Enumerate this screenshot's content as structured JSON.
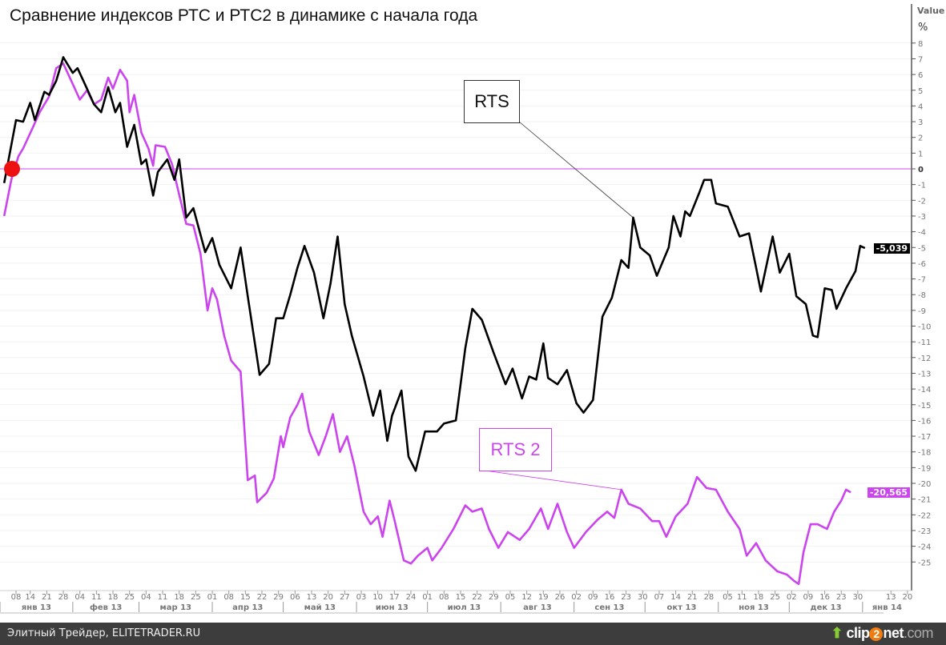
{
  "chart_data": {
    "type": "line",
    "title": "Сравнение индексов РТС и РТС2 в динамике с начала года",
    "ylabel": "Value",
    "yunit": "%",
    "ylim": [
      -26.5,
      9
    ],
    "yticks": [
      8,
      7,
      6,
      5,
      4,
      3,
      2,
      1,
      0,
      -1,
      -2,
      -3,
      -4,
      -5,
      -6,
      -7,
      -8,
      -9,
      -10,
      -11,
      -12,
      -13,
      -14,
      -15,
      -16,
      -17,
      -18,
      -19,
      -20,
      -21,
      -22,
      -23,
      -24,
      -25
    ],
    "x_unit": "day of year 2013",
    "xticks": [
      {
        "date": "2013-01-08",
        "label": "08"
      },
      {
        "date": "2013-01-14",
        "label": "14"
      },
      {
        "date": "2013-01-21",
        "label": "21"
      },
      {
        "date": "2013-01-28",
        "label": "28"
      },
      {
        "date": "2013-02-04",
        "label": "04"
      },
      {
        "date": "2013-02-11",
        "label": "11"
      },
      {
        "date": "2013-02-18",
        "label": "18"
      },
      {
        "date": "2013-02-25",
        "label": "25"
      },
      {
        "date": "2013-03-04",
        "label": "04"
      },
      {
        "date": "2013-03-11",
        "label": "11"
      },
      {
        "date": "2013-03-18",
        "label": "18"
      },
      {
        "date": "2013-03-25",
        "label": "25"
      },
      {
        "date": "2013-04-01",
        "label": "01"
      },
      {
        "date": "2013-04-08",
        "label": "08"
      },
      {
        "date": "2013-04-15",
        "label": "15"
      },
      {
        "date": "2013-04-22",
        "label": "22"
      },
      {
        "date": "2013-04-29",
        "label": "29"
      },
      {
        "date": "2013-05-06",
        "label": "06"
      },
      {
        "date": "2013-05-13",
        "label": "13"
      },
      {
        "date": "2013-05-20",
        "label": "20"
      },
      {
        "date": "2013-05-27",
        "label": "27"
      },
      {
        "date": "2013-06-03",
        "label": "03"
      },
      {
        "date": "2013-06-10",
        "label": "10"
      },
      {
        "date": "2013-06-17",
        "label": "17"
      },
      {
        "date": "2013-06-24",
        "label": "24"
      },
      {
        "date": "2013-07-01",
        "label": "01"
      },
      {
        "date": "2013-07-08",
        "label": "08"
      },
      {
        "date": "2013-07-15",
        "label": "15"
      },
      {
        "date": "2013-07-22",
        "label": "22"
      },
      {
        "date": "2013-07-29",
        "label": "29"
      },
      {
        "date": "2013-08-05",
        "label": "05"
      },
      {
        "date": "2013-08-12",
        "label": "12"
      },
      {
        "date": "2013-08-19",
        "label": "19"
      },
      {
        "date": "2013-08-26",
        "label": "26"
      },
      {
        "date": "2013-09-02",
        "label": "02"
      },
      {
        "date": "2013-09-09",
        "label": "09"
      },
      {
        "date": "2013-09-16",
        "label": "16"
      },
      {
        "date": "2013-09-23",
        "label": "23"
      },
      {
        "date": "2013-09-30",
        "label": "30"
      },
      {
        "date": "2013-10-07",
        "label": "07"
      },
      {
        "date": "2013-10-14",
        "label": "14"
      },
      {
        "date": "2013-10-21",
        "label": "21"
      },
      {
        "date": "2013-10-28",
        "label": "28"
      },
      {
        "date": "2013-11-05",
        "label": "05"
      },
      {
        "date": "2013-11-11",
        "label": "11"
      },
      {
        "date": "2013-11-18",
        "label": "18"
      },
      {
        "date": "2013-11-25",
        "label": "25"
      },
      {
        "date": "2013-12-02",
        "label": "02"
      },
      {
        "date": "2013-12-09",
        "label": "09"
      },
      {
        "date": "2013-12-16",
        "label": "16"
      },
      {
        "date": "2013-12-23",
        "label": "23"
      },
      {
        "date": "2013-12-30",
        "label": "30"
      },
      {
        "date": "2014-01-13",
        "label": "13"
      },
      {
        "date": "2014-01-20",
        "label": "20"
      }
    ],
    "months": [
      {
        "start": "2013-01-01",
        "end": "2013-02-01",
        "label": "янв 13"
      },
      {
        "start": "2013-02-01",
        "end": "2013-03-01",
        "label": "фев 13"
      },
      {
        "start": "2013-03-01",
        "end": "2013-04-01",
        "label": "мар 13"
      },
      {
        "start": "2013-04-01",
        "end": "2013-05-01",
        "label": "апр 13"
      },
      {
        "start": "2013-05-01",
        "end": "2013-06-01",
        "label": "май 13"
      },
      {
        "start": "2013-06-01",
        "end": "2013-07-01",
        "label": "июн 13"
      },
      {
        "start": "2013-07-01",
        "end": "2013-08-01",
        "label": "июл 13"
      },
      {
        "start": "2013-08-01",
        "end": "2013-09-01",
        "label": "авг 13"
      },
      {
        "start": "2013-09-01",
        "end": "2013-10-01",
        "label": "сен 13"
      },
      {
        "start": "2013-10-01",
        "end": "2013-11-01",
        "label": "окт 13"
      },
      {
        "start": "2013-11-01",
        "end": "2013-12-01",
        "label": "ноя 13"
      },
      {
        "start": "2013-12-01",
        "end": "2014-01-01",
        "label": "дек 13"
      },
      {
        "start": "2014-01-01",
        "end": "2014-01-22",
        "label": "янв 14"
      }
    ],
    "series": [
      {
        "name": "RTS",
        "color": "#000000",
        "last_value": "-5,039",
        "points": [
          [
            3,
            -0.9
          ],
          [
            8,
            3.1
          ],
          [
            11,
            3
          ],
          [
            14,
            4.2
          ],
          [
            16,
            3.1
          ],
          [
            20,
            4.9
          ],
          [
            22,
            4.7
          ],
          [
            25,
            5.6
          ],
          [
            28,
            7.1
          ],
          [
            32,
            6.1
          ],
          [
            34,
            6.4
          ],
          [
            38,
            5.1
          ],
          [
            41,
            4.1
          ],
          [
            44,
            3.6
          ],
          [
            47,
            5.2
          ],
          [
            50,
            3.6
          ],
          [
            52,
            4.2
          ],
          [
            55,
            1.4
          ],
          [
            58,
            2.8
          ],
          [
            61,
            0.3
          ],
          [
            63,
            0.6
          ],
          [
            66,
            -1.7
          ],
          [
            68,
            -0.2
          ],
          [
            72,
            0.6
          ],
          [
            75,
            -0.7
          ],
          [
            77,
            0.6
          ],
          [
            80,
            -3.1
          ],
          [
            83,
            -2.5
          ],
          [
            88,
            -5.3
          ],
          [
            91,
            -4.4
          ],
          [
            94,
            -6.1
          ],
          [
            99,
            -7.6
          ],
          [
            103,
            -5
          ],
          [
            106,
            -8.1
          ],
          [
            109,
            -11.1
          ],
          [
            111,
            -13.1
          ],
          [
            115,
            -12.4
          ],
          [
            118,
            -9.5
          ],
          [
            121,
            -9.5
          ],
          [
            124,
            -8
          ],
          [
            127,
            -6.3
          ],
          [
            130,
            -4.9
          ],
          [
            134,
            -6.6
          ],
          [
            138,
            -9.5
          ],
          [
            141,
            -7.3
          ],
          [
            144,
            -4.3
          ],
          [
            147,
            -8.6
          ],
          [
            150,
            -10.6
          ],
          [
            155,
            -13.2
          ],
          [
            159,
            -15.7
          ],
          [
            162,
            -14.1
          ],
          [
            165,
            -17.3
          ],
          [
            167,
            -15.7
          ],
          [
            171,
            -14.1
          ],
          [
            174,
            -18.3
          ],
          [
            177,
            -19.2
          ],
          [
            181,
            -16.7
          ],
          [
            186,
            -16.7
          ],
          [
            189,
            -16.2
          ],
          [
            194,
            -16
          ],
          [
            198,
            -11.4
          ],
          [
            201,
            -8.9
          ],
          [
            205,
            -9.6
          ],
          [
            210,
            -11.7
          ],
          [
            215,
            -13.7
          ],
          [
            218,
            -12.7
          ],
          [
            222,
            -14.6
          ],
          [
            225,
            -13.2
          ],
          [
            228,
            -13.4
          ],
          [
            231,
            -11.1
          ],
          [
            233,
            -13.3
          ],
          [
            237,
            -13.7
          ],
          [
            241,
            -12.8
          ],
          [
            245,
            -14.9
          ],
          [
            248,
            -15.5
          ],
          [
            252,
            -14.7
          ],
          [
            256,
            -9.4
          ],
          [
            260,
            -8.2
          ],
          [
            264,
            -5.8
          ],
          [
            267,
            -6.3
          ],
          [
            269,
            -3.1
          ],
          [
            272,
            -5
          ],
          [
            276,
            -5.5
          ],
          [
            279,
            -6.8
          ],
          [
            284,
            -5
          ],
          [
            286,
            -3
          ],
          [
            289,
            -4.3
          ],
          [
            291,
            -2.7
          ],
          [
            293,
            -3
          ],
          [
            297,
            -1.5
          ],
          [
            299,
            -0.7
          ],
          [
            302,
            -0.7
          ],
          [
            304,
            -2.2
          ],
          [
            309,
            -2.4
          ],
          [
            314,
            -4.3
          ],
          [
            318,
            -4.1
          ],
          [
            321,
            -6.3
          ],
          [
            323,
            -7.8
          ],
          [
            328,
            -4.3
          ],
          [
            331,
            -6.6
          ],
          [
            335,
            -5.4
          ],
          [
            338,
            -8.1
          ],
          [
            342,
            -8.6
          ],
          [
            345,
            -10.6
          ],
          [
            347,
            -10.7
          ],
          [
            350,
            -7.6
          ],
          [
            353,
            -7.7
          ],
          [
            355,
            -8.9
          ],
          [
            359,
            -7.6
          ],
          [
            363,
            -6.5
          ],
          [
            365,
            -4.9
          ],
          [
            367,
            -5.04
          ]
        ]
      },
      {
        "name": "RTS 2",
        "color": "#cc44ee",
        "last_value": "-20,565",
        "points": [
          [
            3,
            -3
          ],
          [
            6,
            -0.7
          ],
          [
            9,
            0.8
          ],
          [
            11,
            1.3
          ],
          [
            15,
            2.6
          ],
          [
            18,
            3.6
          ],
          [
            22,
            4.6
          ],
          [
            25,
            6.4
          ],
          [
            28,
            6.7
          ],
          [
            32,
            5.4
          ],
          [
            35,
            4.4
          ],
          [
            38,
            5
          ],
          [
            41,
            4.1
          ],
          [
            44,
            4.4
          ],
          [
            47,
            5.8
          ],
          [
            49,
            5.1
          ],
          [
            52,
            6.3
          ],
          [
            55,
            5.6
          ],
          [
            56,
            3.6
          ],
          [
            58,
            4.7
          ],
          [
            61,
            2.3
          ],
          [
            64,
            1.3
          ],
          [
            66,
            0.2
          ],
          [
            67,
            1.5
          ],
          [
            71,
            1.4
          ],
          [
            74,
            0.3
          ],
          [
            76,
            -1
          ],
          [
            80,
            -3.5
          ],
          [
            83,
            -3.6
          ],
          [
            86,
            -5.4
          ],
          [
            89,
            -9
          ],
          [
            91,
            -7.6
          ],
          [
            93,
            -8.3
          ],
          [
            96,
            -10.6
          ],
          [
            99,
            -12.2
          ],
          [
            103,
            -12.9
          ],
          [
            104,
            -15.2
          ],
          [
            106,
            -19.8
          ],
          [
            109,
            -19.5
          ],
          [
            110,
            -21.2
          ],
          [
            114,
            -20.6
          ],
          [
            117,
            -19.7
          ],
          [
            120,
            -17
          ],
          [
            121,
            -17.7
          ],
          [
            124,
            -15.8
          ],
          [
            127,
            -15
          ],
          [
            129,
            -14.3
          ],
          [
            132,
            -16.7
          ],
          [
            136,
            -18.2
          ],
          [
            139,
            -17
          ],
          [
            142,
            -15.6
          ],
          [
            145,
            -18
          ],
          [
            148,
            -17
          ],
          [
            151,
            -18.8
          ],
          [
            155,
            -21.8
          ],
          [
            158,
            -22.6
          ],
          [
            161,
            -22.1
          ],
          [
            163,
            -23.4
          ],
          [
            166,
            -21.1
          ],
          [
            168,
            -22.3
          ],
          [
            172,
            -24.9
          ],
          [
            175,
            -25.1
          ],
          [
            178,
            -24.6
          ],
          [
            182,
            -24.1
          ],
          [
            184,
            -24.9
          ],
          [
            188,
            -24.1
          ],
          [
            193,
            -22.9
          ],
          [
            198,
            -21.4
          ],
          [
            201,
            -21.8
          ],
          [
            205,
            -21.6
          ],
          [
            208,
            -22.9
          ],
          [
            212,
            -24.1
          ],
          [
            216,
            -23.1
          ],
          [
            221,
            -23.6
          ],
          [
            225,
            -22.9
          ],
          [
            230,
            -21.6
          ],
          [
            233,
            -22.9
          ],
          [
            237,
            -21.3
          ],
          [
            241,
            -23.1
          ],
          [
            244,
            -24.1
          ],
          [
            249,
            -23.1
          ],
          [
            254,
            -22.3
          ],
          [
            258,
            -21.8
          ],
          [
            261,
            -22.2
          ],
          [
            264,
            -20.4
          ],
          [
            267,
            -21.3
          ],
          [
            272,
            -21.6
          ],
          [
            277,
            -22.4
          ],
          [
            280,
            -22.4
          ],
          [
            283,
            -23.4
          ],
          [
            287,
            -22.1
          ],
          [
            292,
            -21.3
          ],
          [
            296,
            -19.6
          ],
          [
            300,
            -20.3
          ],
          [
            304,
            -20.4
          ],
          [
            309,
            -21.8
          ],
          [
            314,
            -22.9
          ],
          [
            317,
            -24.6
          ],
          [
            321,
            -23.8
          ],
          [
            325,
            -24.9
          ],
          [
            330,
            -25.6
          ],
          [
            334,
            -25.8
          ],
          [
            337,
            -26.2
          ],
          [
            339,
            -26.4
          ],
          [
            341,
            -24.4
          ],
          [
            344,
            -22.6
          ],
          [
            347,
            -22.6
          ],
          [
            351,
            -22.9
          ],
          [
            354,
            -21.8
          ],
          [
            357,
            -21.1
          ],
          [
            359,
            -20.4
          ],
          [
            361,
            -20.57
          ]
        ]
      }
    ],
    "annotations": [
      {
        "text": "RTS",
        "series": "RTS",
        "at_day": 269
      },
      {
        "text": "RTS 2",
        "series": "RTS 2",
        "at_day": 264
      }
    ],
    "reference_line": {
      "y": 0,
      "color": "#cc44ee"
    },
    "start_marker": {
      "y": 0,
      "color": "#ee1111"
    }
  },
  "footer": {
    "source": "Элитный Трейдер, ELITETRADER.RU",
    "logo": {
      "clip": "clip",
      "two": "2",
      "net": "net",
      ".com": ".com"
    }
  }
}
